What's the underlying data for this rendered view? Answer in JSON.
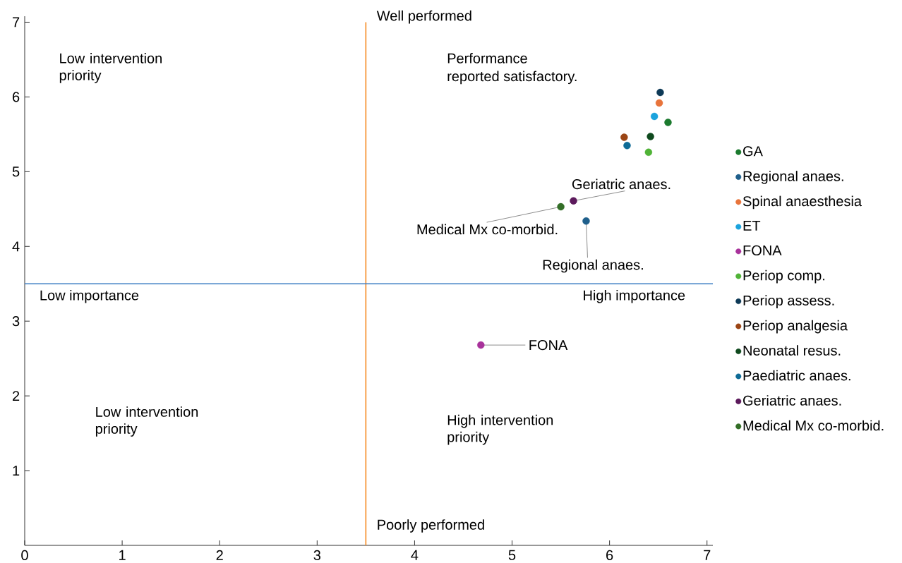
{
  "chart_data": {
    "type": "scatter",
    "legend": "right",
    "grid": false,
    "xlim": [
      0,
      7.06
    ],
    "ylim": [
      0,
      7.08
    ],
    "xticks": [
      0,
      1,
      2,
      3,
      4,
      5,
      6,
      7
    ],
    "yticks": [
      1,
      2,
      3,
      4,
      5,
      6,
      7
    ],
    "series": [
      {
        "name": "GA",
        "color": "#1b7a2e",
        "x": [
          6.6
        ],
        "values": [
          5.66
        ]
      },
      {
        "name": "Regional anaes.",
        "color": "#1f5f8b",
        "x": [
          5.76
        ],
        "values": [
          4.34
        ]
      },
      {
        "name": "Spinal anaesthesia",
        "color": "#e8743b",
        "x": [
          6.51
        ],
        "values": [
          5.92
        ]
      },
      {
        "name": "ET",
        "color": "#1ba3dd",
        "x": [
          6.46
        ],
        "values": [
          5.74
        ]
      },
      {
        "name": "FONA",
        "color": "#a8329b",
        "x": [
          4.68
        ],
        "values": [
          2.68
        ]
      },
      {
        "name": "Periop comp.",
        "color": "#50b337",
        "x": [
          6.4
        ],
        "values": [
          5.26
        ]
      },
      {
        "name": "Periop assess.",
        "color": "#0e3a57",
        "x": [
          6.52
        ],
        "values": [
          6.06
        ]
      },
      {
        "name": "Periop analgesia",
        "color": "#9b4515",
        "x": [
          6.15
        ],
        "values": [
          5.46
        ]
      },
      {
        "name": "Neonatal resus.",
        "color": "#0f4a1e",
        "x": [
          6.42
        ],
        "values": [
          5.47
        ]
      },
      {
        "name": "Paediatric anaes.",
        "color": "#0e6b96",
        "x": [
          6.18
        ],
        "values": [
          5.35
        ]
      },
      {
        "name": "Geriatric anaes.",
        "color": "#5c1a5c",
        "x": [
          5.63
        ],
        "values": [
          4.61
        ]
      },
      {
        "name": "Medical Mx co-morbid.",
        "color": "#336e27",
        "x": [
          5.5
        ],
        "values": [
          4.53
        ]
      }
    ],
    "ref_lines": [
      {
        "axis": "x",
        "value": 3.5,
        "color": "#f5891f"
      },
      {
        "axis": "y",
        "value": 3.5,
        "color": "#3b7dc4"
      }
    ],
    "annotations": [
      {
        "text": "FONA",
        "x": 4.68,
        "y": 2.68
      },
      {
        "text": "Regional anaes.",
        "x": 5.76,
        "y": 4.34
      },
      {
        "text": "Geriatric anaes.",
        "x": 5.63,
        "y": 4.61
      },
      {
        "text": "Medical Mx co-morbid.",
        "x": 5.5,
        "y": 4.53
      },
      "Well performed",
      "Poorly performed",
      "Low importance",
      "High importance",
      "Low intervention priority",
      "Performance",
      "reported satisfactory.",
      "Low intervention priority",
      "High intervention priority"
    ]
  }
}
